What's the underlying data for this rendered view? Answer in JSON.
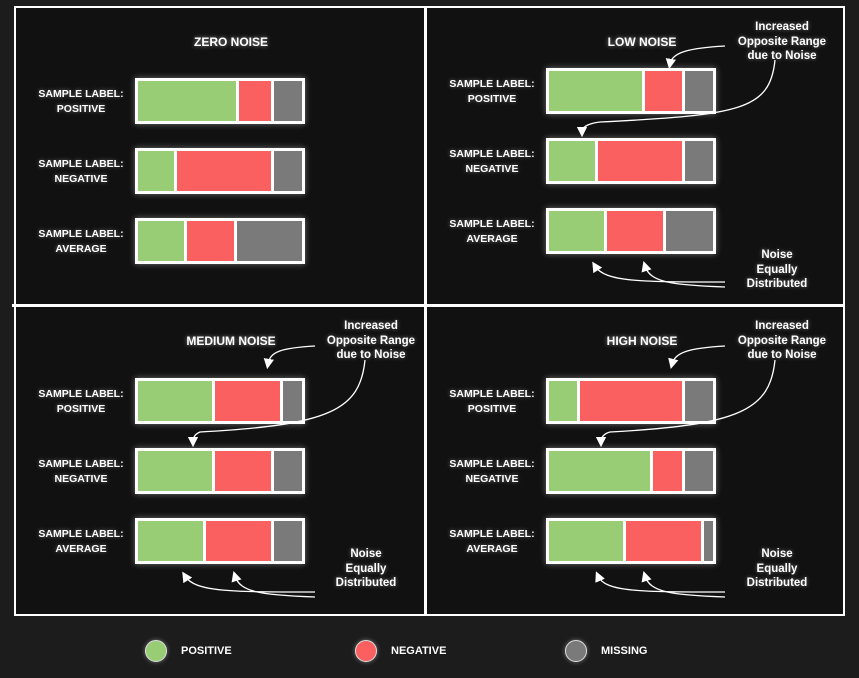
{
  "colors": {
    "positive": "#98cd76",
    "negative": "#fa6060",
    "missing": "#7a7a7a"
  },
  "row_labels": [
    [
      "SAMPLE LABEL:",
      "POSITIVE"
    ],
    [
      "SAMPLE LABEL:",
      "NEGATIVE"
    ],
    [
      "SAMPLE LABEL:",
      "AVERAGE"
    ]
  ],
  "panels": [
    {
      "title": "ZERO NOISE",
      "bars": [
        [
          62,
          20,
          18
        ],
        [
          23,
          59,
          18
        ],
        [
          29,
          30,
          41
        ]
      ]
    },
    {
      "title": "LOW NOISE",
      "bars": [
        [
          59,
          23,
          18
        ],
        [
          29,
          53,
          18
        ],
        [
          35,
          35,
          30
        ]
      ],
      "annotation_top": [
        "Increased",
        "Opposite Range",
        "due to Noise"
      ],
      "annotation_bottom": [
        "Noise",
        "Equally",
        "Distributed"
      ]
    },
    {
      "title": "MEDIUM NOISE",
      "bars": [
        [
          47,
          41,
          12
        ],
        [
          47,
          35,
          18
        ],
        [
          41,
          41,
          18
        ]
      ],
      "annotation_top": [
        "Increased",
        "Opposite Range",
        "due to Noise"
      ],
      "annotation_bottom": [
        "Noise",
        "Equally",
        "Distributed"
      ]
    },
    {
      "title": "HIGH NOISE",
      "bars": [
        [
          18,
          64,
          18
        ],
        [
          64,
          18,
          18
        ],
        [
          47,
          47,
          6
        ]
      ],
      "annotation_top": [
        "Increased",
        "Opposite Range",
        "due to Noise"
      ],
      "annotation_bottom": [
        "Noise",
        "Equally",
        "Distributed"
      ]
    }
  ],
  "legend": [
    {
      "label": "POSITIVE",
      "key": "positive"
    },
    {
      "label": "NEGATIVE",
      "key": "negative"
    },
    {
      "label": "MISSING",
      "key": "missing"
    }
  ]
}
